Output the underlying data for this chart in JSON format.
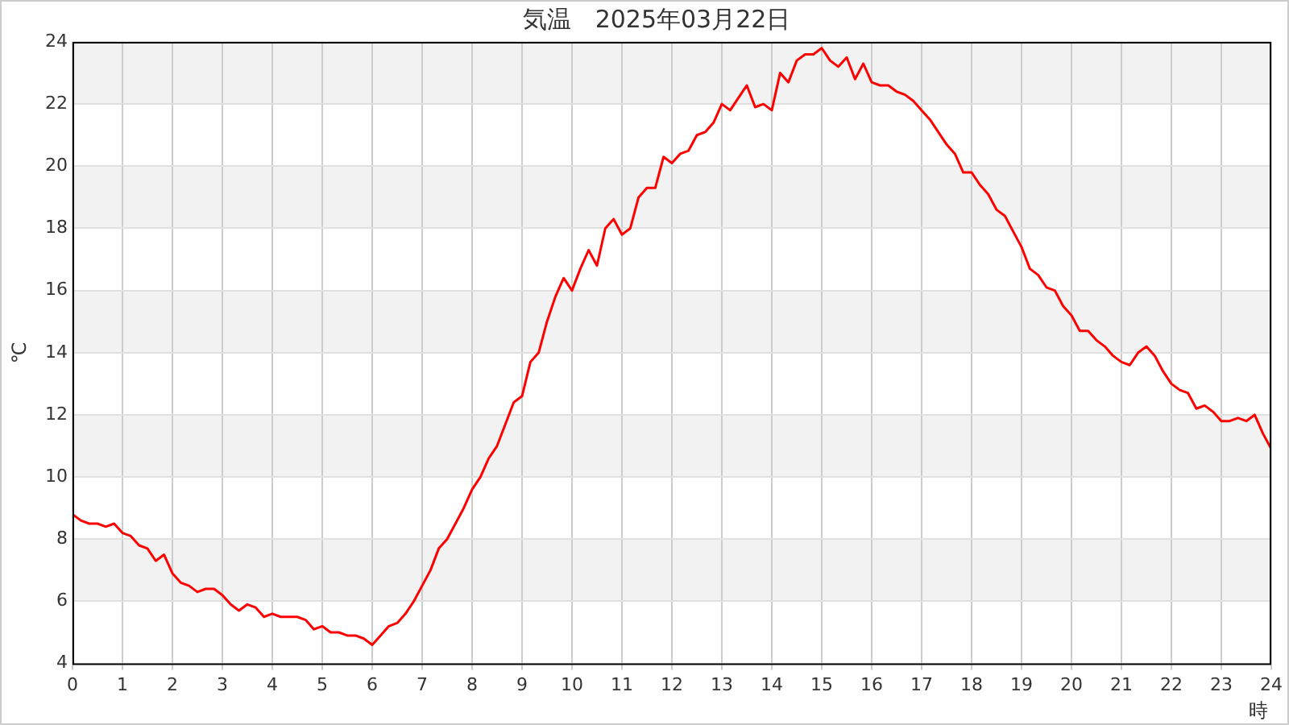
{
  "chart_data": {
    "type": "line",
    "title": "気温　2025年03月22日",
    "xlabel": "時",
    "ylabel": "℃",
    "x": [
      0,
      0.167,
      0.333,
      0.5,
      0.667,
      0.833,
      1,
      1.167,
      1.333,
      1.5,
      1.667,
      1.833,
      2,
      2.167,
      2.333,
      2.5,
      2.667,
      2.833,
      3,
      3.167,
      3.333,
      3.5,
      3.667,
      3.833,
      4,
      4.167,
      4.333,
      4.5,
      4.667,
      4.833,
      5,
      5.167,
      5.333,
      5.5,
      5.667,
      5.833,
      6,
      6.167,
      6.333,
      6.5,
      6.667,
      6.833,
      7,
      7.167,
      7.333,
      7.5,
      7.667,
      7.833,
      8,
      8.167,
      8.333,
      8.5,
      8.667,
      8.833,
      9,
      9.167,
      9.333,
      9.5,
      9.667,
      9.833,
      10,
      10.167,
      10.333,
      10.5,
      10.667,
      10.833,
      11,
      11.167,
      11.333,
      11.5,
      11.667,
      11.833,
      12,
      12.167,
      12.333,
      12.5,
      12.667,
      12.833,
      13,
      13.167,
      13.333,
      13.5,
      13.667,
      13.833,
      14,
      14.167,
      14.333,
      14.5,
      14.667,
      14.833,
      15,
      15.167,
      15.333,
      15.5,
      15.667,
      15.833,
      16,
      16.167,
      16.333,
      16.5,
      16.667,
      16.833,
      17,
      17.167,
      17.333,
      17.5,
      17.667,
      17.833,
      18,
      18.167,
      18.333,
      18.5,
      18.667,
      18.833,
      19,
      19.167,
      19.333,
      19.5,
      19.667,
      19.833,
      20,
      20.167,
      20.333,
      20.5,
      20.667,
      20.833,
      21,
      21.167,
      21.333,
      21.5,
      21.667,
      21.833,
      22,
      22.167,
      22.333,
      22.5,
      22.667,
      22.833,
      23,
      23.167,
      23.333,
      23.5,
      23.667,
      23.833,
      24
    ],
    "series": [
      {
        "color": "#ff0000",
        "values": [
          8.8,
          8.6,
          8.5,
          8.5,
          8.4,
          8.5,
          8.2,
          8.1,
          7.8,
          7.7,
          7.3,
          7.5,
          6.9,
          6.6,
          6.5,
          6.3,
          6.4,
          6.4,
          6.2,
          5.9,
          5.7,
          5.9,
          5.8,
          5.5,
          5.6,
          5.5,
          5.5,
          5.5,
          5.4,
          5.1,
          5.2,
          5.0,
          5.0,
          4.9,
          4.9,
          4.8,
          4.6,
          4.9,
          5.2,
          5.3,
          5.6,
          6.0,
          6.5,
          7.0,
          7.7,
          8.0,
          8.5,
          9.0,
          9.6,
          10.0,
          10.6,
          11.0,
          11.7,
          12.4,
          12.6,
          13.7,
          14.0,
          15.0,
          15.8,
          16.4,
          16.0,
          16.7,
          17.3,
          16.8,
          18.0,
          18.3,
          17.8,
          18.0,
          19.0,
          19.3,
          19.3,
          20.3,
          20.1,
          20.4,
          20.5,
          21.0,
          21.1,
          21.4,
          22.0,
          21.8,
          22.2,
          22.6,
          21.9,
          22.0,
          21.8,
          23.0,
          22.7,
          23.4,
          23.6,
          23.6,
          23.8,
          23.4,
          23.2,
          23.5,
          22.8,
          23.3,
          22.7,
          22.6,
          22.6,
          22.4,
          22.3,
          22.1,
          21.8,
          21.5,
          21.1,
          20.7,
          20.4,
          19.8,
          19.8,
          19.4,
          19.1,
          18.6,
          18.4,
          17.9,
          17.4,
          16.7,
          16.5,
          16.1,
          16.0,
          15.5,
          15.2,
          14.7,
          14.7,
          14.4,
          14.2,
          13.9,
          13.7,
          13.6,
          14.0,
          14.2,
          13.9,
          13.4,
          13.0,
          12.8,
          12.7,
          12.2,
          12.3,
          12.1,
          11.8,
          11.8,
          11.9,
          11.8,
          12.0,
          11.4,
          10.9
        ]
      }
    ],
    "xlim": [
      0,
      24
    ],
    "xticks": [
      0,
      1,
      2,
      3,
      4,
      5,
      6,
      7,
      8,
      9,
      10,
      11,
      12,
      13,
      14,
      15,
      16,
      17,
      18,
      19,
      20,
      21,
      22,
      23,
      24
    ],
    "ylim": [
      4,
      24
    ],
    "yticks": [
      4,
      6,
      8,
      10,
      12,
      14,
      16,
      18,
      20,
      22,
      24
    ],
    "grid": true,
    "legend": false,
    "marker": "none",
    "line_style": "solid"
  }
}
